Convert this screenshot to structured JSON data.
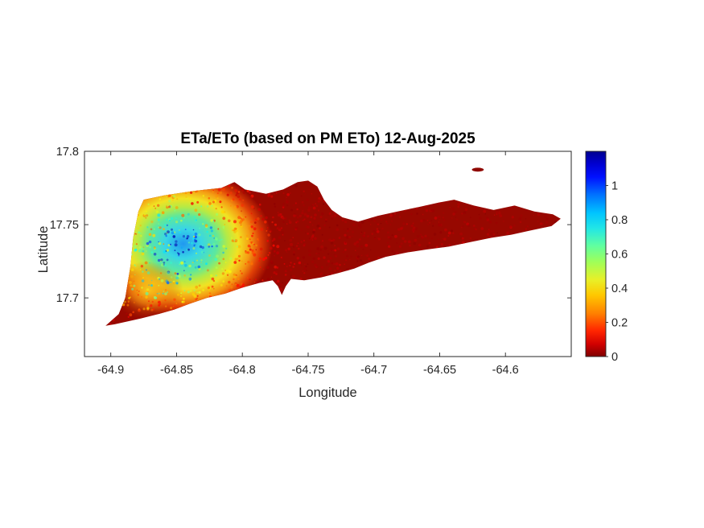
{
  "figure": {
    "background": "#ffffff",
    "text_color": "#262626",
    "title_color": "#000000"
  },
  "chart_data": {
    "type": "heatmap",
    "title": "ETa/ETo (based on PM ETo) 12-Aug-2025",
    "date_shown": "12-Aug-2025",
    "xlabel": "Longitude",
    "ylabel": "Latitude",
    "xlim": [
      -64.92,
      -64.55
    ],
    "ylim": [
      17.66,
      17.8
    ],
    "xticks": [
      -64.9,
      -64.85,
      -64.8,
      -64.75,
      -64.7,
      -64.65,
      -64.6
    ],
    "xtick_labels": [
      "-64.9",
      "-64.85",
      "-64.8",
      "-64.75",
      "-64.7",
      "-64.65",
      "-64.6"
    ],
    "yticks": [
      17.7,
      17.75,
      17.8
    ],
    "ytick_labels": [
      "17.7",
      "17.75",
      "17.8"
    ],
    "grid": false,
    "colorbar": {
      "min": 0,
      "max": 1.2,
      "ticks": [
        0,
        0.2,
        0.4,
        0.6,
        0.8,
        1
      ],
      "tick_labels": [
        "0",
        "0.2",
        "0.4",
        "0.6",
        "0.8",
        "1"
      ],
      "colormap": "jet-reversed (0 = dark red, high = dark blue)",
      "stops": [
        {
          "pos": 0.0,
          "color": "#00008f"
        },
        {
          "pos": 0.06,
          "color": "#0000d0"
        },
        {
          "pos": 0.125,
          "color": "#0010ff"
        },
        {
          "pos": 0.21,
          "color": "#0070ff"
        },
        {
          "pos": 0.3,
          "color": "#00c4ff"
        },
        {
          "pos": 0.375,
          "color": "#22e6e6"
        },
        {
          "pos": 0.46,
          "color": "#60ffa0"
        },
        {
          "pos": 0.54,
          "color": "#a0ff58"
        },
        {
          "pos": 0.625,
          "color": "#e8f028"
        },
        {
          "pos": 0.7,
          "color": "#ffc800"
        },
        {
          "pos": 0.79,
          "color": "#ff8000"
        },
        {
          "pos": 0.875,
          "color": "#ff2500"
        },
        {
          "pos": 0.94,
          "color": "#d00000"
        },
        {
          "pos": 1.0,
          "color": "#800000"
        }
      ]
    },
    "island": {
      "base_value": 0.05,
      "base_color": "#970800",
      "outline_lonlat": [
        [
          -64.904,
          17.681
        ],
        [
          -64.894,
          17.689
        ],
        [
          -64.889,
          17.7
        ],
        [
          -64.885,
          17.722
        ],
        [
          -64.883,
          17.741
        ],
        [
          -64.879,
          17.759
        ],
        [
          -64.875,
          17.767
        ],
        [
          -64.859,
          17.77
        ],
        [
          -64.837,
          17.773
        ],
        [
          -64.816,
          17.775
        ],
        [
          -64.806,
          17.779
        ],
        [
          -64.798,
          17.774
        ],
        [
          -64.782,
          17.771
        ],
        [
          -64.769,
          17.774
        ],
        [
          -64.758,
          17.779
        ],
        [
          -64.75,
          17.78
        ],
        [
          -64.743,
          17.776
        ],
        [
          -64.738,
          17.767
        ],
        [
          -64.732,
          17.76
        ],
        [
          -64.724,
          17.755
        ],
        [
          -64.712,
          17.752
        ],
        [
          -64.697,
          17.756
        ],
        [
          -64.682,
          17.759
        ],
        [
          -64.666,
          17.762
        ],
        [
          -64.651,
          17.765
        ],
        [
          -64.639,
          17.767
        ],
        [
          -64.624,
          17.763
        ],
        [
          -64.609,
          17.76
        ],
        [
          -64.593,
          17.763
        ],
        [
          -64.578,
          17.759
        ],
        [
          -64.564,
          17.757
        ],
        [
          -64.558,
          17.754
        ],
        [
          -64.565,
          17.749
        ],
        [
          -64.581,
          17.746
        ],
        [
          -64.596,
          17.743
        ],
        [
          -64.611,
          17.741
        ],
        [
          -64.627,
          17.738
        ],
        [
          -64.643,
          17.735
        ],
        [
          -64.66,
          17.733
        ],
        [
          -64.675,
          17.731
        ],
        [
          -64.691,
          17.728
        ],
        [
          -64.704,
          17.724
        ],
        [
          -64.715,
          17.72
        ],
        [
          -64.727,
          17.717
        ],
        [
          -64.74,
          17.714
        ],
        [
          -64.753,
          17.712
        ],
        [
          -64.763,
          17.713
        ],
        [
          -64.767,
          17.708
        ],
        [
          -64.77,
          17.702
        ],
        [
          -64.773,
          17.708
        ],
        [
          -64.777,
          17.712
        ],
        [
          -64.788,
          17.71
        ],
        [
          -64.8,
          17.707
        ],
        [
          -64.813,
          17.703
        ],
        [
          -64.827,
          17.7
        ],
        [
          -64.84,
          17.696
        ],
        [
          -64.852,
          17.692
        ],
        [
          -64.864,
          17.689
        ],
        [
          -64.877,
          17.686
        ],
        [
          -64.887,
          17.684
        ],
        [
          -64.897,
          17.682
        ]
      ],
      "offshore_islet": {
        "center": [
          -64.621,
          17.7875
        ],
        "rx_deg": 0.0045,
        "ry_deg": 0.0013,
        "value": 0.05,
        "color": "#8f0600"
      },
      "high_eta_blob": {
        "center": [
          -64.845,
          17.737
        ],
        "rx_deg": 0.068,
        "ry_deg": 0.05,
        "peak_value": 0.9,
        "stops": [
          {
            "pos": 0.0,
            "color": "#2098f0"
          },
          {
            "pos": 0.2,
            "color": "#38d6e6"
          },
          {
            "pos": 0.38,
            "color": "#5ce89e"
          },
          {
            "pos": 0.5,
            "color": "#b4ea46"
          },
          {
            "pos": 0.62,
            "color": "#f2e222"
          },
          {
            "pos": 0.75,
            "color": "#f49a12"
          },
          {
            "pos": 0.86,
            "color": "#e04006"
          },
          {
            "pos": 1.0,
            "color": "#970800"
          }
        ]
      },
      "southwest_patch": {
        "center": [
          -64.872,
          17.705
        ],
        "rx_deg": 0.027,
        "ry_deg": 0.02,
        "peak_value": 0.45,
        "stops": [
          {
            "pos": 0.0,
            "color": "#f6cc1e",
            "opacity": 0.9
          },
          {
            "pos": 0.45,
            "color": "#f39a10",
            "opacity": 0.6
          },
          {
            "pos": 1.0,
            "color": "#c03000",
            "opacity": 0
          }
        ]
      },
      "field_model": {
        "base": 0.05,
        "gaussians": [
          {
            "center": [
              -64.845,
              17.737
            ],
            "sx": 0.03,
            "sy": 0.0225,
            "amp": 0.85
          },
          {
            "center": [
              -64.872,
              17.705
            ],
            "sx": 0.016,
            "sy": 0.013,
            "amp": 0.28
          }
        ]
      }
    }
  }
}
